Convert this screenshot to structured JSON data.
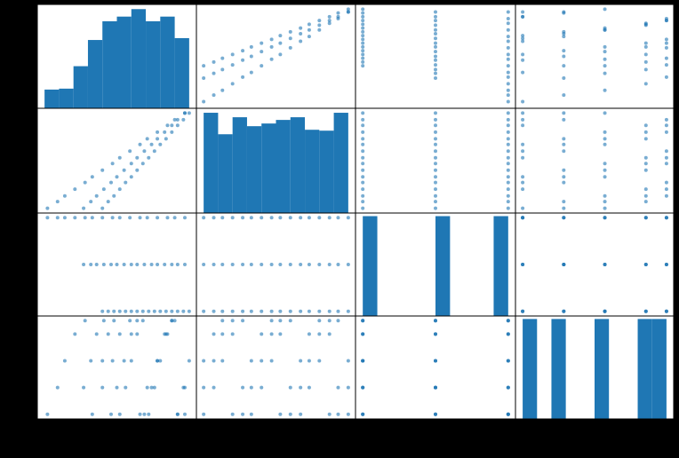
{
  "chart_data": {
    "type": "scatter_matrix",
    "color": "#1f77b4",
    "limits": [
      [
        -0.05,
        1.05
      ],
      [
        -0.05,
        1.05
      ],
      [
        -0.1,
        2.1
      ],
      [
        -0.175,
        3.675
      ]
    ],
    "histograms": [
      {
        "bins": [
          0,
          0.1,
          0.2,
          0.3,
          0.4,
          0.5,
          0.6,
          0.7,
          0.8,
          0.9,
          1.0
        ],
        "counts": [
          20,
          21,
          45,
          73,
          93,
          98,
          106,
          93,
          98,
          75
        ],
        "ylim": [
          0,
          111
        ]
      },
      {
        "bins": [
          0,
          0.1,
          0.2,
          0.3,
          0.4,
          0.5,
          0.6,
          0.7,
          0.8,
          0.9,
          1.0
        ],
        "counts": [
          112,
          88,
          107,
          97,
          100,
          104,
          107,
          93,
          92,
          112
        ],
        "ylim": [
          0,
          117
        ]
      },
      {
        "bins": [
          0,
          0.2,
          0.4,
          0.6,
          0.8,
          1.0,
          1.2,
          1.4,
          1.6,
          1.8,
          2.0
        ],
        "counts": [
          16,
          0,
          0,
          0,
          0,
          16,
          0,
          0,
          0,
          16
        ],
        "ylim": [
          0,
          16.5
        ]
      },
      {
        "bins": [
          0,
          0.35,
          0.7,
          1.05,
          1.4,
          1.75,
          2.1,
          2.45,
          2.8,
          3.15,
          3.5
        ],
        "counts": [
          10,
          0,
          10,
          0,
          0,
          10,
          0,
          0,
          10,
          10
        ],
        "ylim": [
          0,
          10.3
        ]
      }
    ],
    "observations": [
      [
        0.02,
        0,
        2,
        0
      ],
      [
        0.09,
        0.07,
        2,
        1
      ],
      [
        0.14,
        0.13,
        2,
        2
      ],
      [
        0.21,
        0.2,
        2,
        3
      ],
      [
        0.28,
        0.27,
        2,
        3.5
      ],
      [
        0.33,
        0.33,
        2,
        0
      ],
      [
        0.4,
        0.4,
        2,
        1
      ],
      [
        0.47,
        0.47,
        2,
        2
      ],
      [
        0.52,
        0.53,
        2,
        3
      ],
      [
        0.59,
        0.6,
        2,
        3.5
      ],
      [
        0.66,
        0.67,
        2,
        0
      ],
      [
        0.71,
        0.73,
        2,
        1
      ],
      [
        0.78,
        0.8,
        2,
        2
      ],
      [
        0.85,
        0.87,
        2,
        3
      ],
      [
        0.9,
        0.93,
        2,
        3.5
      ],
      [
        0.97,
        1,
        2,
        0
      ],
      [
        0.27,
        0,
        1,
        1
      ],
      [
        0.32,
        0.07,
        1,
        2
      ],
      [
        0.36,
        0.13,
        1,
        3
      ],
      [
        0.41,
        0.2,
        1,
        3.5
      ],
      [
        0.46,
        0.27,
        1,
        0
      ],
      [
        0.5,
        0.33,
        1,
        1
      ],
      [
        0.55,
        0.4,
        1,
        2
      ],
      [
        0.6,
        0.47,
        1,
        3
      ],
      [
        0.64,
        0.53,
        1,
        3.5
      ],
      [
        0.69,
        0.6,
        1,
        0
      ],
      [
        0.74,
        0.67,
        1,
        1
      ],
      [
        0.78,
        0.73,
        1,
        2
      ],
      [
        0.83,
        0.8,
        1,
        3
      ],
      [
        0.88,
        0.87,
        1,
        3.5
      ],
      [
        0.92,
        0.93,
        1,
        0
      ],
      [
        0.97,
        1,
        1,
        1
      ],
      [
        0.4,
        0,
        0,
        2
      ],
      [
        0.44,
        0.07,
        0,
        3
      ],
      [
        0.48,
        0.13,
        0,
        3.5
      ],
      [
        0.52,
        0.2,
        0,
        0
      ],
      [
        0.56,
        0.27,
        0,
        1
      ],
      [
        0.6,
        0.33,
        0,
        2
      ],
      [
        0.64,
        0.4,
        0,
        3
      ],
      [
        0.68,
        0.47,
        0,
        3.5
      ],
      [
        0.72,
        0.53,
        0,
        0
      ],
      [
        0.76,
        0.6,
        0,
        1
      ],
      [
        0.8,
        0.67,
        0,
        2
      ],
      [
        0.84,
        0.73,
        0,
        3
      ],
      [
        0.88,
        0.8,
        0,
        3.5
      ],
      [
        0.92,
        0.87,
        0,
        0
      ],
      [
        0.96,
        0.93,
        0,
        1
      ],
      [
        1.0,
        1,
        0,
        2
      ]
    ]
  }
}
